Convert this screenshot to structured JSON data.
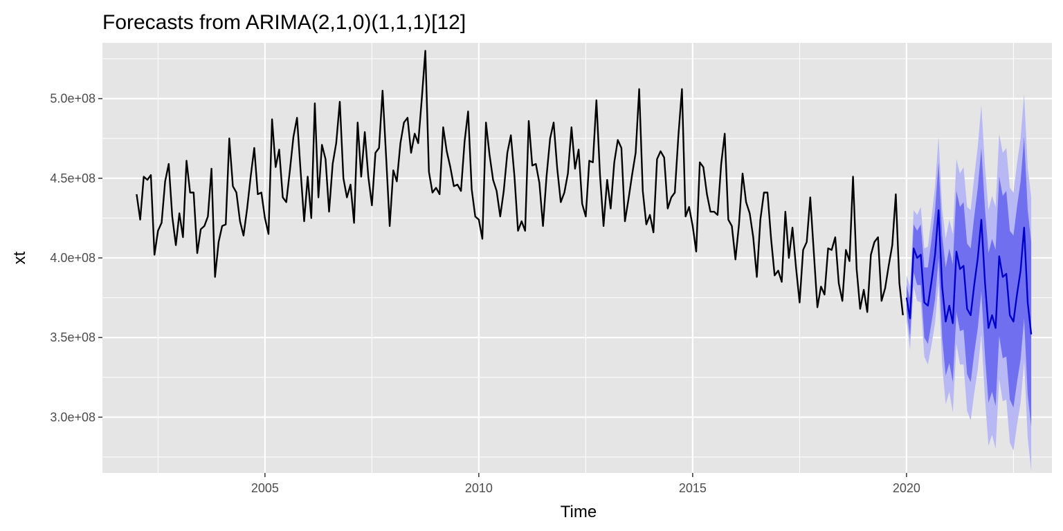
{
  "chart_data": {
    "type": "line",
    "title": "Forecasts from ARIMA(2,1,0)(1,1,1)[12]",
    "xlabel": "Time",
    "ylabel": "xt",
    "xlim": [
      2001.2,
      2023.4
    ],
    "ylim": [
      265000000,
      535000000
    ],
    "x_ticks": [
      2005,
      2010,
      2015,
      2020
    ],
    "x_tick_labels": [
      "2005",
      "2010",
      "2015",
      "2020"
    ],
    "y_ticks": [
      300000000,
      350000000,
      400000000,
      450000000,
      500000000
    ],
    "y_tick_labels": [
      "3.0e+08",
      "3.5e+08",
      "4.0e+08",
      "4.5e+08",
      "5.0e+08"
    ],
    "grid": true,
    "colors": {
      "panel": "#e5e5e5",
      "grid": "#ffffff",
      "history_line": "#000000",
      "forecast_line": "#0000cc",
      "interval_80": "#6f6ff0",
      "interval_95": "#b8b8f5"
    },
    "series": [
      {
        "role": "history",
        "start": 2002.0,
        "frequency": 12,
        "values": [
          440,
          424,
          451,
          449,
          452,
          402,
          417,
          422,
          448,
          459,
          426,
          408,
          428,
          413,
          461,
          441,
          441,
          403,
          418,
          420,
          426,
          456,
          388,
          410,
          420,
          421,
          475,
          445,
          441,
          423,
          414,
          431,
          451,
          469,
          440,
          441,
          425,
          415,
          487,
          457,
          468,
          438,
          435,
          455,
          476,
          488,
          455,
          423,
          451,
          425,
          497,
          438,
          471,
          462,
          429,
          459,
          472,
          498,
          450,
          438,
          446,
          422,
          485,
          451,
          479,
          451,
          433,
          466,
          469,
          505,
          463,
          420,
          455,
          448,
          472,
          485,
          488,
          466,
          478,
          472,
          500,
          530,
          454,
          441,
          444,
          440,
          482,
          467,
          457,
          445,
          446,
          442,
          473,
          492,
          443,
          426,
          424,
          412,
          485,
          465,
          449,
          442,
          426,
          442,
          466,
          477,
          451,
          417,
          423,
          417,
          486,
          458,
          459,
          447,
          420,
          451,
          475,
          485,
          456,
          435,
          441,
          453,
          482,
          456,
          468,
          434,
          426,
          461,
          460,
          499,
          452,
          420,
          449,
          431,
          460,
          474,
          469,
          423,
          437,
          452,
          466,
          506,
          442,
          421,
          427,
          416,
          462,
          467,
          463,
          431,
          438,
          441,
          477,
          506,
          426,
          432,
          420,
          404,
          460,
          457,
          440,
          429,
          429,
          427,
          459,
          478,
          424,
          420,
          399,
          421,
          453,
          435,
          428,
          413,
          388,
          424,
          441,
          441,
          412,
          389,
          392,
          385,
          429,
          400,
          419,
          394,
          372,
          405,
          410,
          438,
          403,
          369,
          382,
          377,
          406,
          405,
          413,
          384,
          373,
          405,
          398,
          451,
          393,
          368,
          380,
          366,
          402,
          410,
          413,
          373,
          381,
          395,
          408,
          440,
          384,
          364
        ]
      },
      {
        "role": "forecast",
        "start": 2020.0,
        "frequency": 12,
        "values": [
          375,
          362,
          406,
          400,
          402,
          372,
          370,
          385,
          402,
          430,
          382,
          360,
          370,
          359,
          404,
          393,
          395,
          368,
          364,
          383,
          400,
          424,
          385,
          356,
          364,
          356,
          401,
          388,
          390,
          364,
          360,
          377,
          392,
          419,
          372,
          352
        ],
        "lo80_widths": [
          8,
          12,
          15,
          17,
          19,
          22,
          24,
          26,
          28,
          30,
          32,
          34,
          36,
          37,
          38,
          39,
          40,
          41,
          42,
          43,
          44,
          45,
          46,
          47,
          48,
          49,
          50,
          51,
          52,
          53,
          54,
          55,
          56,
          57,
          58,
          58
        ],
        "lo95_widths": [
          14,
          20,
          24,
          27,
          30,
          34,
          37,
          40,
          43,
          46,
          49,
          52,
          54,
          56,
          58,
          60,
          62,
          64,
          66,
          68,
          70,
          72,
          73,
          74,
          75,
          76,
          77,
          78,
          79,
          80,
          81,
          82,
          83,
          84,
          85,
          86
        ]
      }
    ]
  }
}
